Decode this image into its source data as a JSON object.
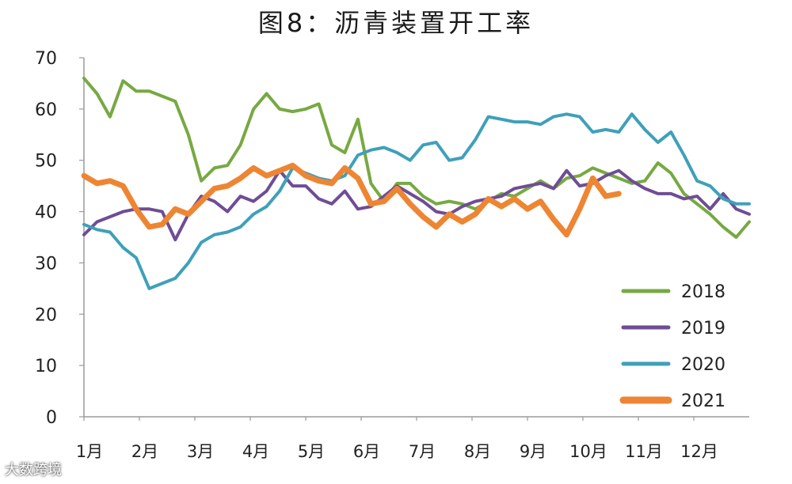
{
  "chart_data": {
    "type": "line",
    "title": "图8：沥青装置开工率",
    "xlabel": "",
    "ylabel": "",
    "ylim": [
      0,
      70
    ],
    "yticks": [
      0,
      10,
      20,
      30,
      40,
      50,
      60,
      70
    ],
    "x_tick_labels": [
      "1月",
      "2月",
      "3月",
      "4月",
      "5月",
      "6月",
      "7月",
      "8月",
      "9月",
      "10月",
      "11月",
      "12月"
    ],
    "x_range_weeks": [
      0,
      51
    ],
    "grid": false,
    "legend_position": "bottom-right",
    "series": [
      {
        "name": "2018",
        "color": "#77a942",
        "stroke": "normal",
        "x": [
          0,
          1,
          2,
          3,
          4,
          5,
          6,
          7,
          8,
          9,
          10,
          11,
          12,
          13,
          14,
          15,
          16,
          17,
          18,
          19,
          20,
          21,
          22,
          23,
          24,
          25,
          26,
          27,
          28,
          29,
          30,
          31,
          32,
          33,
          34,
          35,
          36,
          37,
          38,
          39,
          40,
          41,
          42,
          43,
          44,
          45,
          46,
          47,
          48,
          49,
          50,
          51
        ],
        "values": [
          66,
          63,
          58.5,
          65.5,
          63.5,
          63.5,
          62.5,
          61.5,
          55,
          46,
          48.5,
          49,
          53,
          60,
          63,
          60,
          59.5,
          60,
          61,
          53,
          51.5,
          58,
          45.5,
          42,
          45.5,
          45.5,
          43,
          41.5,
          42,
          41.5,
          40.5,
          42,
          43.5,
          43,
          44.5,
          46,
          44.5,
          46.5,
          47,
          48.5,
          47.5,
          46.5,
          45.5,
          46,
          49.5,
          47.5,
          43.5,
          41.5,
          39.5,
          37,
          35,
          38
        ]
      },
      {
        "name": "2019",
        "color": "#6f4d95",
        "stroke": "normal",
        "x": [
          0,
          1,
          2,
          3,
          4,
          5,
          6,
          7,
          8,
          9,
          10,
          11,
          12,
          13,
          14,
          15,
          16,
          17,
          18,
          19,
          20,
          21,
          22,
          23,
          24,
          25,
          26,
          27,
          28,
          29,
          30,
          31,
          32,
          33,
          34,
          35,
          36,
          37,
          38,
          39,
          40,
          41,
          42,
          43,
          44,
          45,
          46,
          47,
          48,
          49,
          50,
          51
        ],
        "values": [
          35.5,
          38,
          39,
          40,
          40.5,
          40.5,
          40,
          34.5,
          39.5,
          43,
          42,
          40,
          43,
          42,
          44,
          48,
          45,
          45,
          42.5,
          41.5,
          44,
          40.5,
          41,
          43,
          45,
          43.5,
          42,
          40,
          39.5,
          41,
          42,
          42.5,
          43,
          44.5,
          45,
          45.5,
          44.5,
          48,
          45,
          45.5,
          47,
          48,
          46,
          44.5,
          43.5,
          43.5,
          42.5,
          43,
          40.5,
          43.5,
          40.5,
          39.5
        ]
      },
      {
        "name": "2020",
        "color": "#3fa0ba",
        "stroke": "normal",
        "x": [
          0,
          1,
          2,
          3,
          4,
          5,
          6,
          7,
          8,
          9,
          10,
          11,
          12,
          13,
          14,
          15,
          16,
          17,
          18,
          19,
          20,
          21,
          22,
          23,
          24,
          25,
          26,
          27,
          28,
          29,
          30,
          31,
          32,
          33,
          34,
          35,
          36,
          37,
          38,
          39,
          40,
          41,
          42,
          43,
          44,
          45,
          46,
          47,
          48,
          49,
          50,
          51
        ],
        "values": [
          37.5,
          36.5,
          36,
          33,
          31,
          25,
          26,
          27,
          30,
          34,
          35.5,
          36,
          37,
          39.5,
          41,
          44,
          48.5,
          47.5,
          46.5,
          46,
          47,
          51,
          52,
          52.5,
          51.5,
          50,
          53,
          53.5,
          50,
          50.5,
          54,
          58.5,
          58,
          57.5,
          57.5,
          57,
          58.5,
          59,
          58.5,
          55.5,
          56,
          55.5,
          59,
          56,
          53.5,
          55.5,
          51,
          46,
          45,
          42.5,
          41.5,
          41.5
        ]
      },
      {
        "name": "2021",
        "color": "#ee8533",
        "stroke": "thick",
        "x": [
          0,
          1,
          2,
          3,
          4,
          5,
          6,
          7,
          8,
          9,
          10,
          11,
          12,
          13,
          14,
          15,
          16,
          17,
          18,
          19,
          20,
          21,
          22,
          23,
          24,
          25,
          26,
          27,
          28,
          29,
          30,
          31,
          32,
          33,
          34,
          35,
          36,
          37,
          38,
          39,
          40,
          41
        ],
        "values": [
          47,
          45.5,
          46,
          45,
          40.5,
          37,
          37.5,
          40.5,
          39.5,
          42,
          44.5,
          45,
          46.5,
          48.5,
          47,
          48,
          49,
          47,
          46,
          45.5,
          48.5,
          46.5,
          41.5,
          42,
          44.5,
          41.5,
          39,
          37,
          39.5,
          38,
          39.5,
          42.5,
          41,
          42.5,
          40.5,
          42,
          38.5,
          35.5,
          40.5,
          46.5,
          43,
          43.5
        ]
      }
    ]
  },
  "watermark_text": "大数跨境"
}
